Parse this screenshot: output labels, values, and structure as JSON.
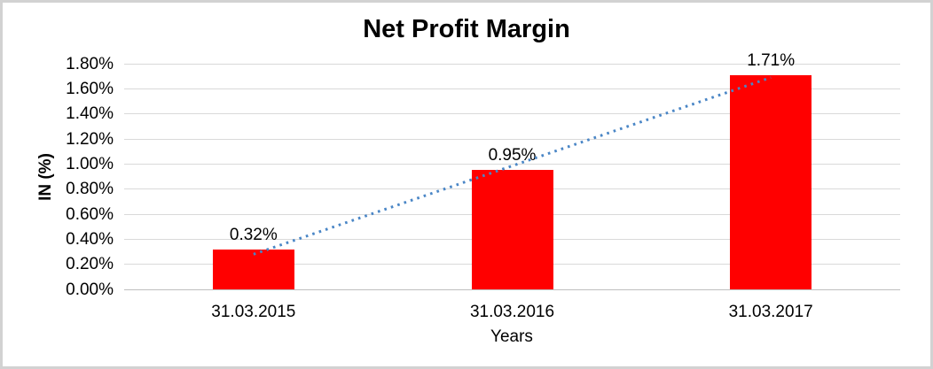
{
  "chart_data": {
    "type": "bar",
    "title": "Net Profit Margin",
    "xlabel": "Years",
    "ylabel": "IN (%)",
    "categories": [
      "31.03.2015",
      "31.03.2016",
      "31.03.2017"
    ],
    "values": [
      0.32,
      0.95,
      1.71
    ],
    "data_labels": [
      "0.32%",
      "0.95%",
      "1.71%"
    ],
    "ylim": [
      0,
      1.8
    ],
    "ytick_step": 0.2,
    "ytick_labels_top_to_bottom": [
      "1.80%",
      "1.60%",
      "1.40%",
      "1.20%",
      "1.00%",
      "0.80%",
      "0.60%",
      "0.40%",
      "0.20%",
      "0.00%"
    ],
    "grid": "horizontal",
    "legend": "none",
    "trendline": {
      "type": "linear",
      "style": "dotted",
      "start_value": 0.28,
      "end_value": 1.69
    },
    "colors": {
      "bar": "#FF0000",
      "trendline": "#4A86C6",
      "gridline": "#D9D9D9",
      "axis_line": "#BFBFBF",
      "text": "#000000",
      "background": "#FFFFFF",
      "frame_border": "#D2D2D2"
    }
  }
}
